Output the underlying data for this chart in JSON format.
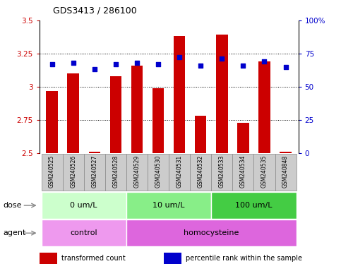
{
  "title": "GDS3413 / 286100",
  "samples": [
    "GSM240525",
    "GSM240526",
    "GSM240527",
    "GSM240528",
    "GSM240529",
    "GSM240530",
    "GSM240531",
    "GSM240532",
    "GSM240533",
    "GSM240534",
    "GSM240535",
    "GSM240848"
  ],
  "bar_values": [
    2.97,
    3.1,
    2.51,
    3.08,
    3.16,
    2.99,
    3.38,
    2.78,
    3.39,
    2.73,
    3.19,
    2.51
  ],
  "dot_values": [
    67,
    68,
    63,
    67,
    68,
    67,
    72,
    66,
    71,
    66,
    69,
    65
  ],
  "bar_color": "#cc0000",
  "dot_color": "#0000cc",
  "ylim_left": [
    2.5,
    3.5
  ],
  "ylim_right": [
    0,
    100
  ],
  "yticks_left": [
    2.5,
    2.75,
    3.0,
    3.25,
    3.5
  ],
  "ytick_labels_left": [
    "2.5",
    "2.75",
    "3",
    "3.25",
    "3.5"
  ],
  "yticks_right": [
    0,
    25,
    50,
    75,
    100
  ],
  "ytick_labels_right": [
    "0",
    "25",
    "50",
    "75",
    "100%"
  ],
  "hlines": [
    2.75,
    3.0,
    3.25
  ],
  "dose_groups": [
    {
      "label": "0 um/L",
      "start": 0,
      "end": 4,
      "color": "#ccffcc"
    },
    {
      "label": "10 um/L",
      "start": 4,
      "end": 8,
      "color": "#88ee88"
    },
    {
      "label": "100 um/L",
      "start": 8,
      "end": 12,
      "color": "#44cc44"
    }
  ],
  "agent_groups": [
    {
      "label": "control",
      "start": 0,
      "end": 4,
      "color": "#ee99ee"
    },
    {
      "label": "homocysteine",
      "start": 4,
      "end": 12,
      "color": "#dd66dd"
    }
  ],
  "legend_items": [
    {
      "color": "#cc0000",
      "label": "transformed count"
    },
    {
      "color": "#0000cc",
      "label": "percentile rank within the sample"
    }
  ],
  "dose_label": "dose",
  "agent_label": "agent",
  "bar_width": 0.55,
  "label_bg": "#cccccc",
  "label_border": "#888888",
  "fig_width": 4.83,
  "fig_height": 3.84,
  "dpi": 100
}
